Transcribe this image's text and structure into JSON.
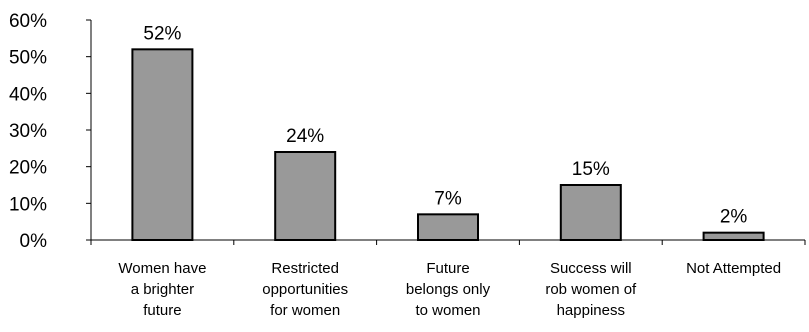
{
  "chart_data": {
    "type": "bar",
    "categories": [
      [
        "Women have",
        "a brighter",
        "future"
      ],
      [
        "Restricted",
        "opportunities",
        "for women"
      ],
      [
        "Future",
        "belongs only",
        "to women"
      ],
      [
        "Success will",
        "rob women of",
        "happiness"
      ],
      [
        "Not Attempted"
      ]
    ],
    "values": [
      52,
      24,
      7,
      15,
      2
    ],
    "data_labels": [
      "52%",
      "24%",
      "7%",
      "15%",
      "2%"
    ],
    "y_ticks": [
      "0%",
      "10%",
      "20%",
      "30%",
      "40%",
      "50%",
      "60%"
    ],
    "ylim": [
      0,
      60
    ],
    "title": "",
    "xlabel": "",
    "ylabel": "",
    "grid": false,
    "bar_color": "#999999",
    "bar_stroke": "#000000"
  }
}
